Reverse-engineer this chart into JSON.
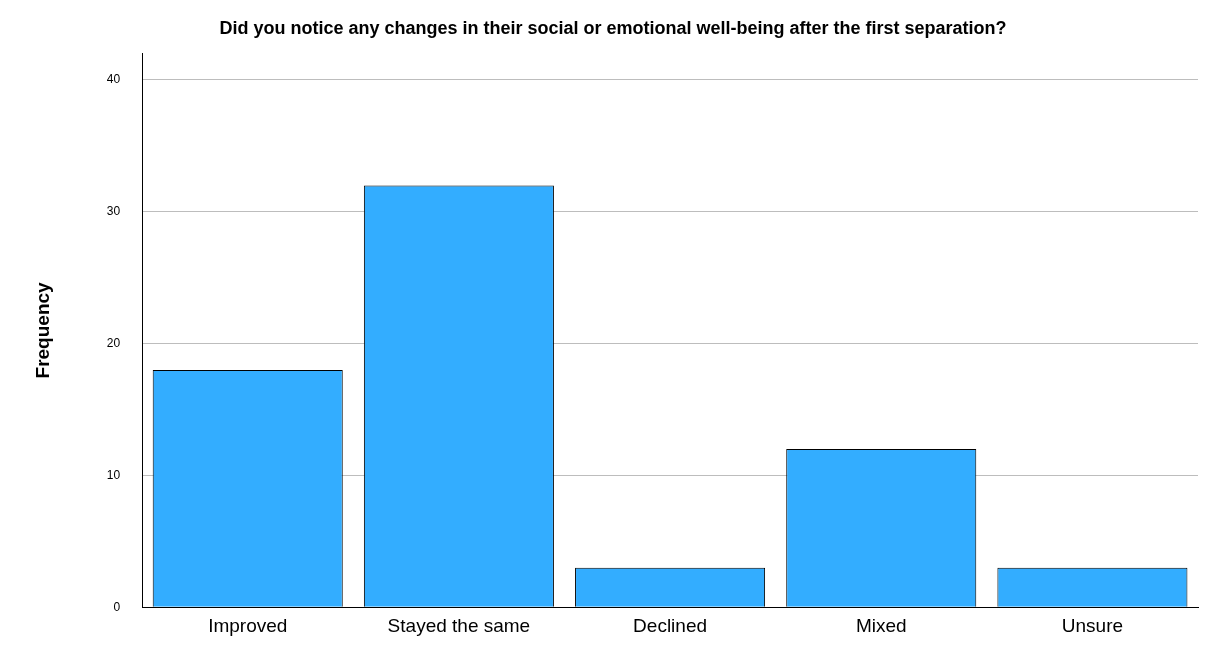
{
  "chart_data": {
    "type": "bar",
    "title": "Did you notice any changes in their social or emotional well-being after the first separation?",
    "ylabel": "Frequency",
    "categories": [
      "Improved",
      "Stayed the same",
      "Declined",
      "Mixed",
      "Unsure"
    ],
    "values": [
      18,
      32,
      3,
      12,
      3
    ],
    "color": "#33adff",
    "ylim": [
      0,
      42
    ],
    "yticks": [
      0,
      10,
      20,
      30,
      40
    ],
    "grid": "y",
    "legend": false
  }
}
